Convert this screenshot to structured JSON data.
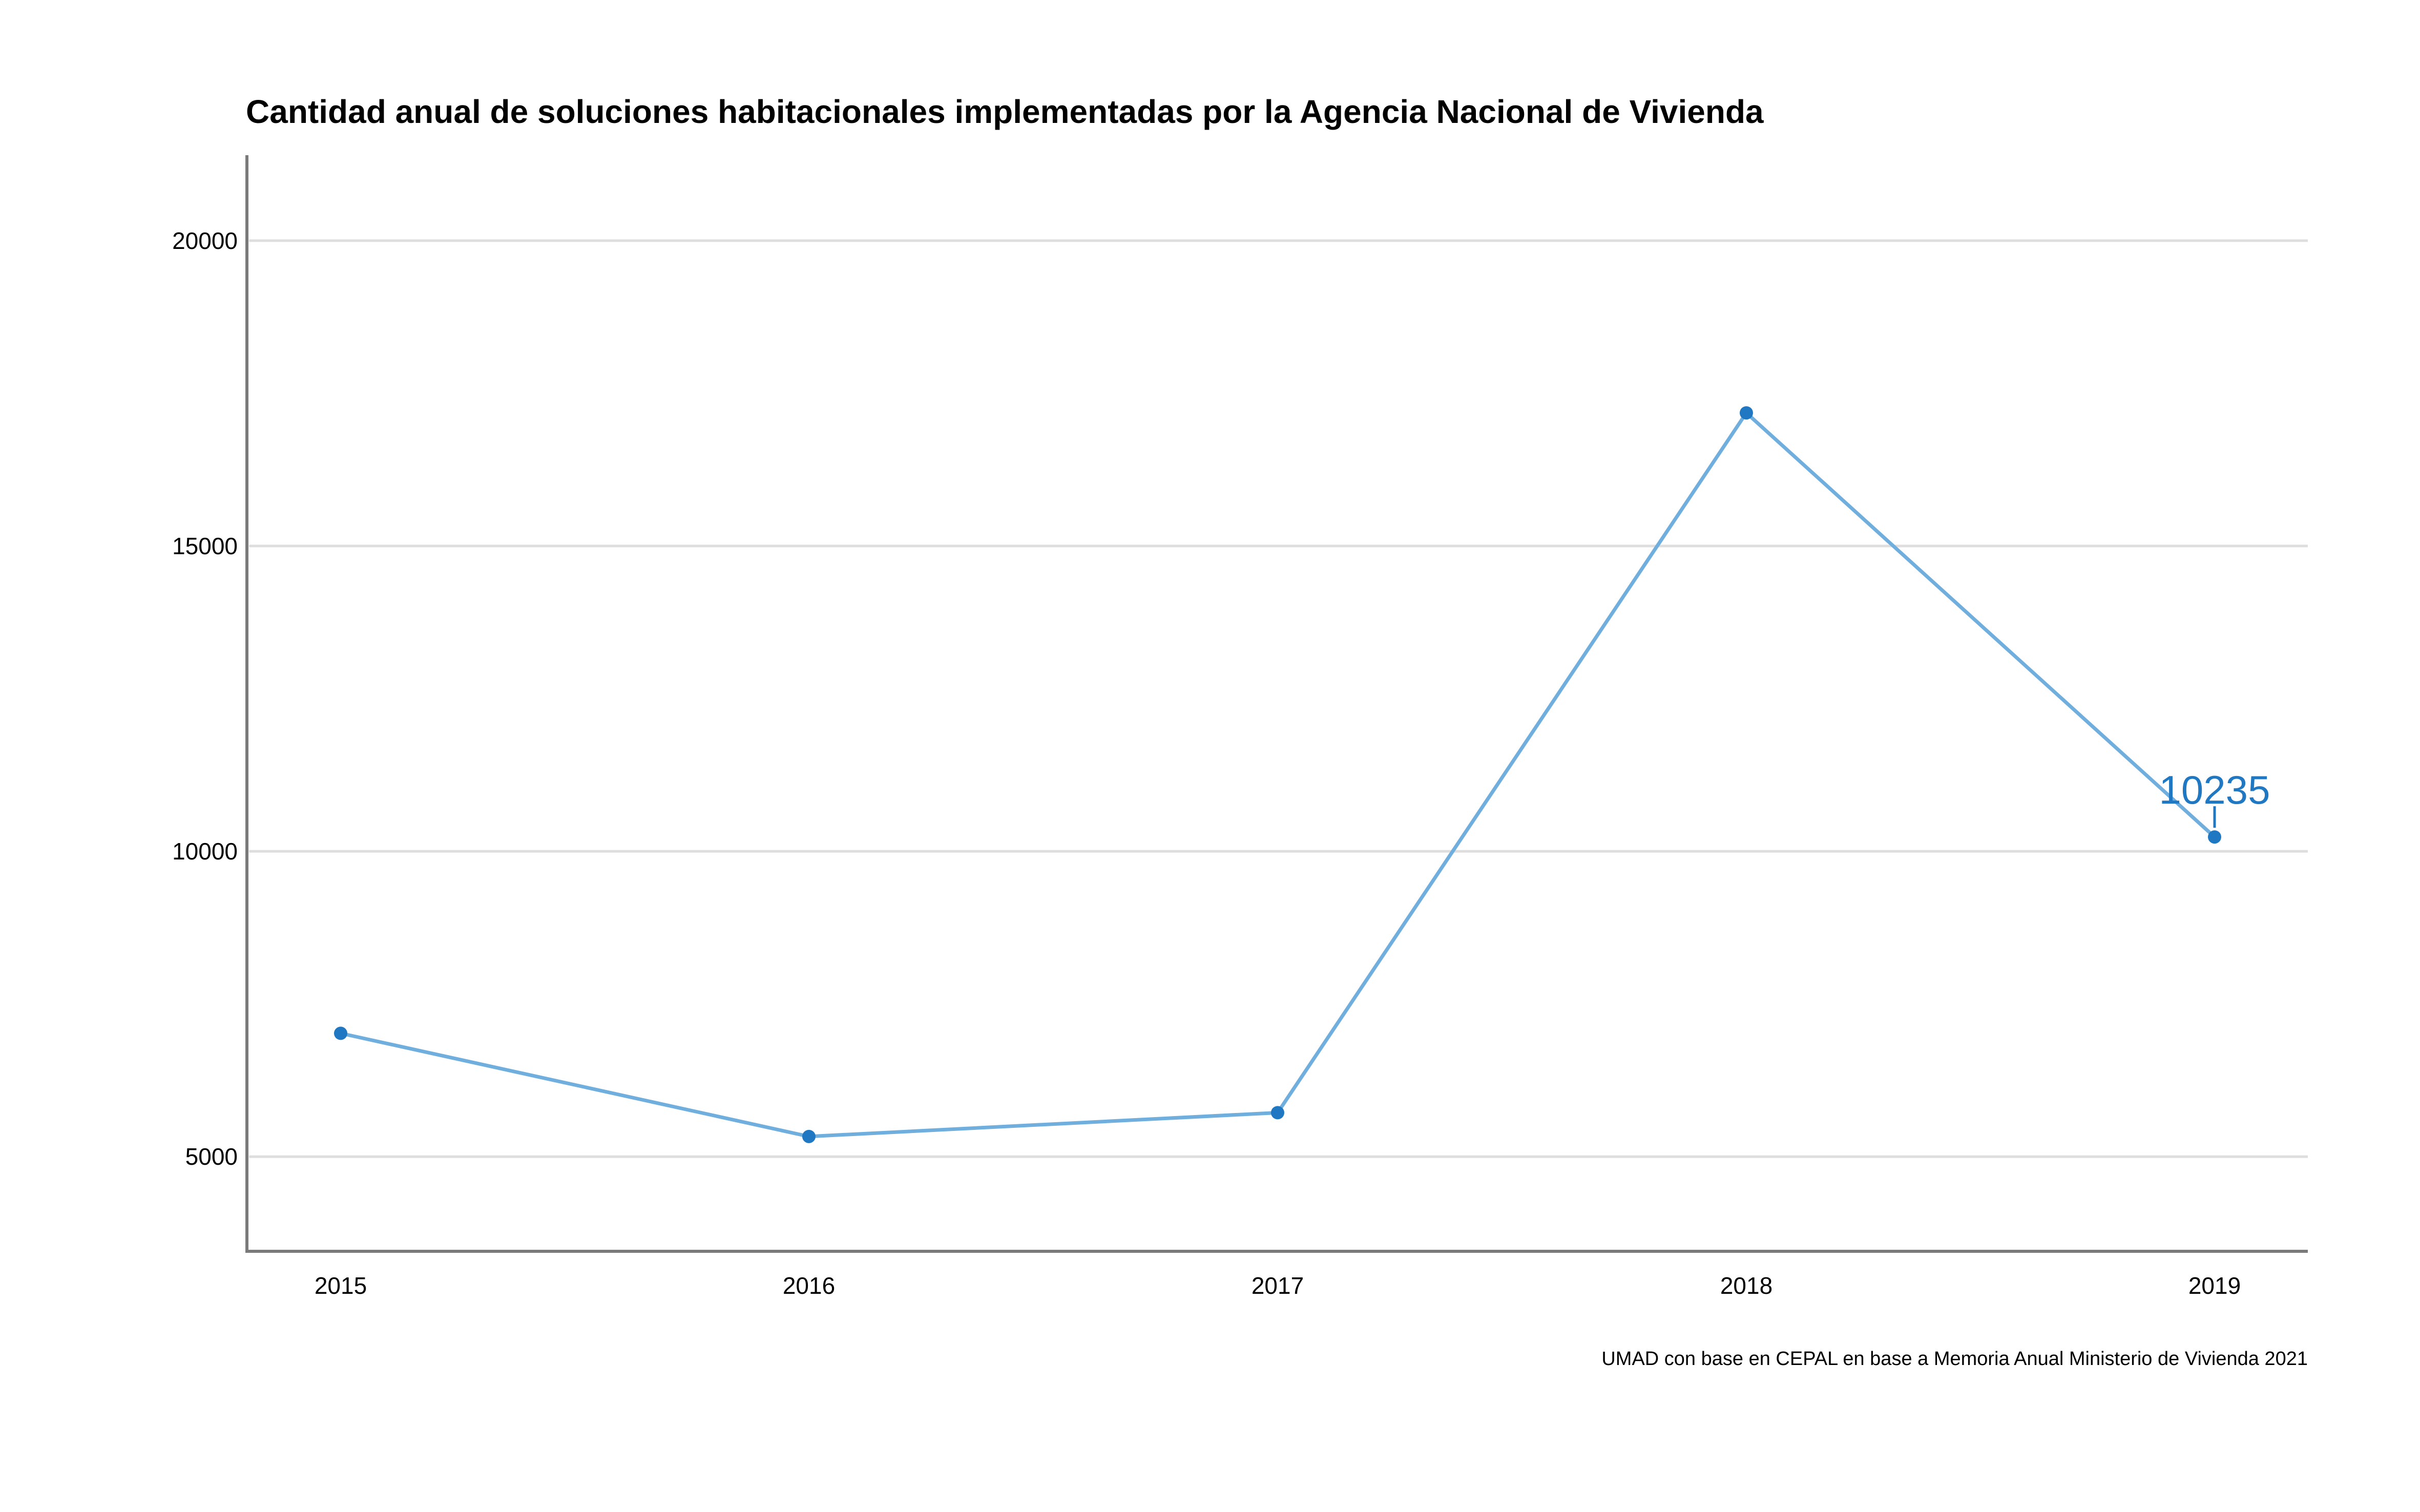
{
  "chart_data": {
    "type": "line",
    "title": "Cantidad anual de soluciones habitacionales implementadas por la Agencia Nacional de Vivienda",
    "subtitle": "",
    "xlabel": "",
    "ylabel": "",
    "caption": "UMAD con base en CEPAL en base a Memoria Anual Ministerio de Vivienda 2021",
    "categories": [
      "2015",
      "2016",
      "2017",
      "2018",
      "2019"
    ],
    "series": [
      {
        "values": [
          7020,
          5330,
          5720,
          17180,
          10235
        ]
      }
    ],
    "ylim": [
      3450,
      21400
    ],
    "yticks": [
      5000,
      10000,
      15000,
      20000
    ],
    "ytick_labels": [
      "5000",
      "10000",
      "15000",
      "20000"
    ],
    "grid": {
      "horizontal": true,
      "vertical": false
    },
    "legend": "none",
    "annotations": [
      {
        "category": "2019",
        "value": 10235,
        "text": "10235"
      }
    ],
    "colors": {
      "line": "#6FAEDD",
      "point": "#1F78C1",
      "label": "#1F78C1",
      "grid": "#DEDEDE",
      "axis": "#7A7A7A"
    }
  }
}
